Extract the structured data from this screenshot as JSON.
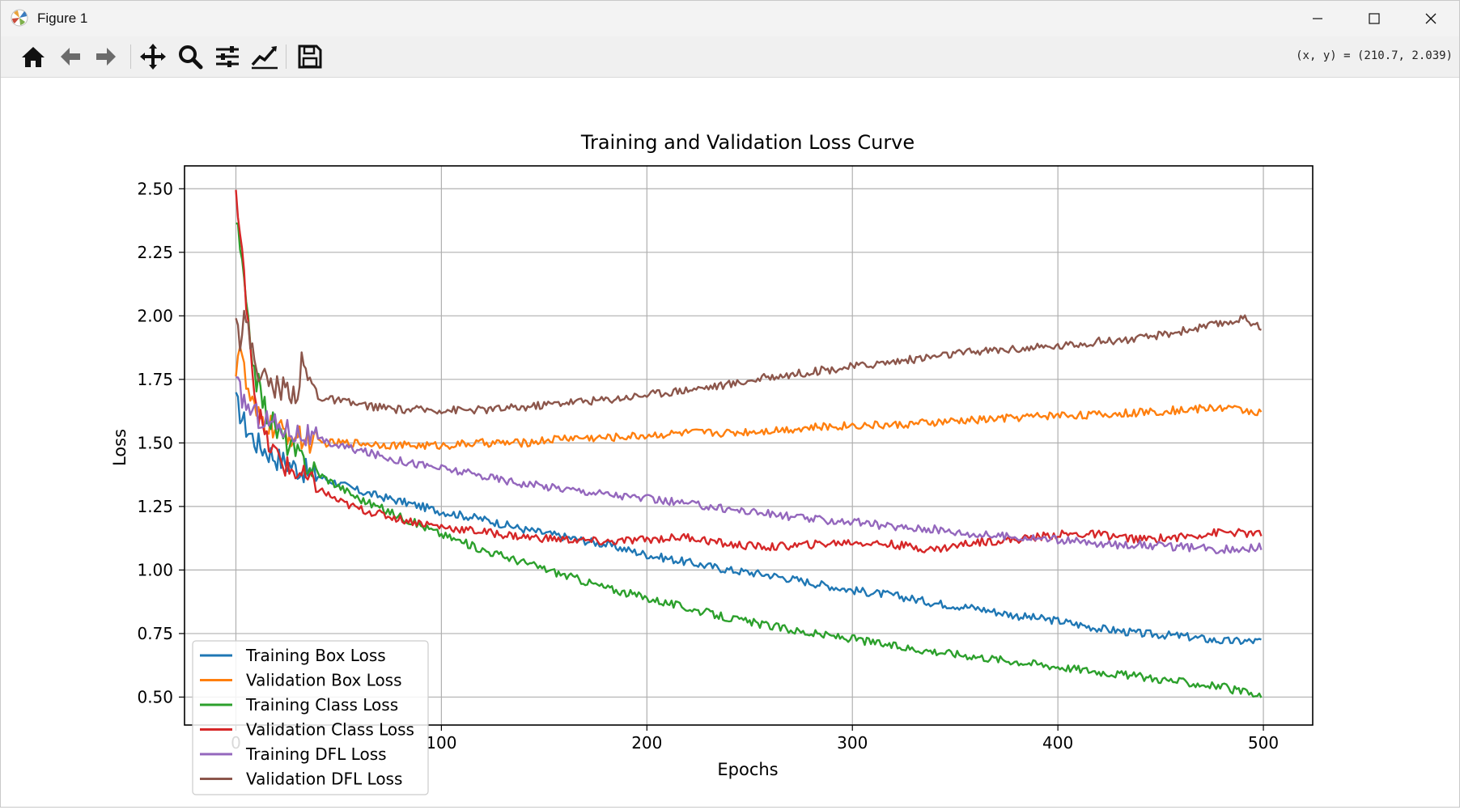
{
  "window": {
    "title": "Figure 1",
    "controls": [
      "minimize",
      "maximize",
      "close"
    ]
  },
  "toolbar": {
    "buttons": [
      {
        "name": "home-icon",
        "label": "Home"
      },
      {
        "name": "back-icon",
        "label": "Back"
      },
      {
        "name": "forward-icon",
        "label": "Forward"
      },
      {
        "name": "pan-icon",
        "label": "Pan"
      },
      {
        "name": "zoom-icon",
        "label": "Zoom"
      },
      {
        "name": "subplots-icon",
        "label": "Subplots"
      },
      {
        "name": "customize-icon",
        "label": "Customize"
      },
      {
        "name": "save-icon",
        "label": "Save"
      }
    ],
    "coords": "(x,  y) = (210.7,  2.039)"
  },
  "chart_data": {
    "type": "line",
    "title": "Training and Validation Loss Curve",
    "xlabel": "Epochs",
    "ylabel": "Loss",
    "xlim": [
      -25,
      524
    ],
    "ylim": [
      0.39,
      2.59
    ],
    "xticks": [
      0,
      100,
      200,
      300,
      400,
      500
    ],
    "xtick_labels": [
      "0",
      "100",
      "200",
      "300",
      "400",
      "500"
    ],
    "yticks": [
      0.5,
      0.75,
      1.0,
      1.25,
      1.5,
      1.75,
      2.0,
      2.25,
      2.5
    ],
    "ytick_labels": [
      "0.50",
      "0.75",
      "1.00",
      "1.25",
      "1.50",
      "1.75",
      "2.00",
      "2.25",
      "2.50"
    ],
    "grid": true,
    "legend_position": "lower-left",
    "series": [
      {
        "name": "Training Box Loss",
        "color": "#1f77b4",
        "x": [
          0,
          5,
          10,
          20,
          30,
          40,
          50,
          60,
          70,
          80,
          100,
          120,
          140,
          160,
          180,
          200,
          220,
          240,
          260,
          280,
          300,
          320,
          340,
          360,
          380,
          400,
          420,
          440,
          460,
          480,
          499
        ],
        "y": [
          1.66,
          1.56,
          1.5,
          1.44,
          1.4,
          1.37,
          1.34,
          1.31,
          1.29,
          1.27,
          1.23,
          1.2,
          1.16,
          1.13,
          1.1,
          1.06,
          1.03,
          1.0,
          0.98,
          0.95,
          0.92,
          0.9,
          0.87,
          0.85,
          0.82,
          0.8,
          0.77,
          0.75,
          0.74,
          0.72,
          0.72
        ]
      },
      {
        "name": "Validation Box Loss",
        "color": "#ff7f0e",
        "x": [
          0,
          2,
          5,
          10,
          20,
          30,
          40,
          60,
          80,
          100,
          120,
          140,
          160,
          180,
          200,
          220,
          240,
          260,
          280,
          300,
          320,
          340,
          360,
          380,
          400,
          420,
          440,
          460,
          480,
          499
        ],
        "y": [
          1.8,
          1.9,
          1.72,
          1.6,
          1.55,
          1.52,
          1.5,
          1.5,
          1.49,
          1.49,
          1.5,
          1.5,
          1.52,
          1.52,
          1.53,
          1.54,
          1.54,
          1.55,
          1.56,
          1.57,
          1.57,
          1.58,
          1.59,
          1.6,
          1.61,
          1.61,
          1.62,
          1.63,
          1.64,
          1.62
        ]
      },
      {
        "name": "Training Class Loss",
        "color": "#2ca02c",
        "x": [
          0,
          3,
          6,
          10,
          15,
          20,
          30,
          40,
          50,
          60,
          80,
          100,
          120,
          140,
          160,
          180,
          200,
          220,
          240,
          260,
          280,
          300,
          320,
          340,
          360,
          380,
          400,
          420,
          440,
          460,
          480,
          499
        ],
        "y": [
          2.38,
          2.2,
          1.95,
          1.75,
          1.62,
          1.55,
          1.45,
          1.38,
          1.33,
          1.28,
          1.21,
          1.14,
          1.08,
          1.03,
          0.98,
          0.93,
          0.89,
          0.85,
          0.81,
          0.78,
          0.75,
          0.73,
          0.7,
          0.68,
          0.66,
          0.64,
          0.62,
          0.6,
          0.58,
          0.56,
          0.54,
          0.5
        ]
      },
      {
        "name": "Validation Class Loss",
        "color": "#d62728",
        "x": [
          0,
          2,
          4,
          6,
          8,
          10,
          15,
          20,
          25,
          30,
          40,
          50,
          60,
          80,
          100,
          120,
          140,
          160,
          180,
          200,
          220,
          240,
          260,
          280,
          300,
          320,
          340,
          360,
          380,
          400,
          420,
          440,
          460,
          480,
          499
        ],
        "y": [
          2.49,
          2.3,
          2.15,
          2.0,
          1.8,
          1.65,
          1.5,
          1.45,
          1.4,
          1.38,
          1.32,
          1.27,
          1.24,
          1.2,
          1.17,
          1.15,
          1.13,
          1.12,
          1.11,
          1.12,
          1.13,
          1.1,
          1.09,
          1.1,
          1.11,
          1.1,
          1.08,
          1.11,
          1.12,
          1.14,
          1.14,
          1.12,
          1.13,
          1.15,
          1.14
        ]
      },
      {
        "name": "Training DFL Loss",
        "color": "#9467bd",
        "x": [
          0,
          5,
          10,
          20,
          30,
          40,
          50,
          60,
          70,
          80,
          100,
          120,
          140,
          160,
          180,
          200,
          220,
          240,
          260,
          280,
          300,
          320,
          340,
          360,
          380,
          400,
          420,
          440,
          460,
          480,
          499
        ],
        "y": [
          1.73,
          1.65,
          1.61,
          1.57,
          1.54,
          1.51,
          1.49,
          1.47,
          1.45,
          1.43,
          1.4,
          1.37,
          1.34,
          1.32,
          1.3,
          1.28,
          1.26,
          1.24,
          1.22,
          1.2,
          1.19,
          1.17,
          1.16,
          1.14,
          1.13,
          1.12,
          1.1,
          1.1,
          1.09,
          1.08,
          1.09
        ]
      },
      {
        "name": "Validation DFL Loss",
        "color": "#8c564b",
        "x": [
          0,
          2,
          4,
          7,
          10,
          15,
          20,
          30,
          32,
          40,
          60,
          80,
          100,
          120,
          140,
          160,
          180,
          200,
          220,
          240,
          260,
          280,
          300,
          320,
          340,
          360,
          380,
          400,
          420,
          440,
          460,
          480,
          490,
          499
        ],
        "y": [
          2.04,
          1.9,
          2.0,
          1.9,
          1.8,
          1.74,
          1.72,
          1.7,
          1.81,
          1.68,
          1.65,
          1.63,
          1.63,
          1.63,
          1.64,
          1.66,
          1.67,
          1.69,
          1.71,
          1.73,
          1.76,
          1.78,
          1.8,
          1.82,
          1.84,
          1.86,
          1.87,
          1.88,
          1.9,
          1.91,
          1.94,
          1.97,
          1.99,
          1.96
        ]
      }
    ]
  }
}
